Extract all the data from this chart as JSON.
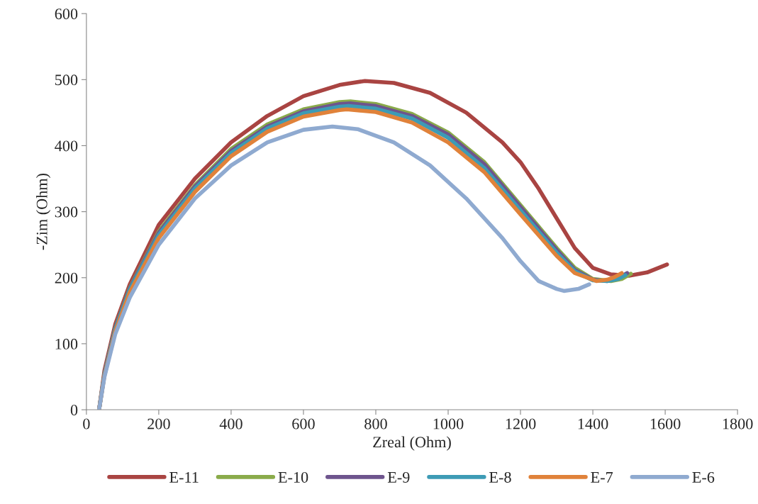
{
  "chart_data": {
    "type": "line",
    "xlabel": "Zreal (Ohm)",
    "ylabel": "-Zim (Ohm)",
    "xlim": [
      0,
      1800
    ],
    "xticks": [
      0,
      200,
      400,
      600,
      800,
      1000,
      1200,
      1400,
      1600,
      1800
    ],
    "ylim": [
      0,
      600
    ],
    "yticks": [
      0,
      100,
      200,
      300,
      400,
      500,
      600
    ],
    "grid": false,
    "legend": "bottom",
    "marker": "none",
    "line_style": "solid",
    "series": [
      {
        "name": "E-11",
        "color": "#a94442",
        "x": [
          35,
          50,
          80,
          120,
          200,
          300,
          400,
          500,
          600,
          700,
          770,
          850,
          950,
          1050,
          1150,
          1200,
          1250,
          1300,
          1350,
          1400,
          1450,
          1500,
          1550,
          1605
        ],
        "values": [
          0,
          60,
          130,
          190,
          280,
          350,
          405,
          445,
          475,
          492,
          498,
          495,
          480,
          450,
          405,
          375,
          335,
          290,
          245,
          215,
          205,
          203,
          208,
          220
        ]
      },
      {
        "name": "E-10",
        "color": "#8aab4a",
        "x": [
          35,
          50,
          80,
          120,
          200,
          300,
          400,
          500,
          600,
          700,
          730,
          800,
          900,
          1000,
          1100,
          1200,
          1300,
          1350,
          1400,
          1450,
          1480,
          1505
        ],
        "values": [
          0,
          55,
          125,
          185,
          270,
          340,
          395,
          432,
          455,
          466,
          467,
          463,
          448,
          420,
          375,
          310,
          245,
          215,
          198,
          195,
          198,
          206
        ]
      },
      {
        "name": "E-9",
        "color": "#6e548d",
        "x": [
          35,
          50,
          80,
          120,
          200,
          300,
          400,
          500,
          600,
          700,
          730,
          800,
          900,
          1000,
          1100,
          1200,
          1300,
          1350,
          1400,
          1440,
          1470,
          1495
        ],
        "values": [
          0,
          55,
          124,
          184,
          268,
          338,
          392,
          429,
          452,
          463,
          464,
          460,
          445,
          417,
          372,
          307,
          242,
          212,
          197,
          195,
          199,
          207
        ]
      },
      {
        "name": "E-8",
        "color": "#3d9bb5",
        "x": [
          35,
          50,
          80,
          120,
          200,
          300,
          400,
          500,
          600,
          700,
          725,
          800,
          900,
          1000,
          1100,
          1200,
          1300,
          1350,
          1400,
          1440,
          1470,
          1490
        ],
        "values": [
          0,
          54,
          122,
          182,
          265,
          335,
          389,
          426,
          449,
          459,
          460,
          456,
          441,
          412,
          366,
          302,
          238,
          210,
          196,
          195,
          198,
          204
        ]
      },
      {
        "name": "E-7",
        "color": "#e0823a",
        "x": [
          35,
          50,
          80,
          120,
          200,
          300,
          400,
          500,
          600,
          700,
          720,
          800,
          900,
          1000,
          1100,
          1200,
          1300,
          1350,
          1410,
          1440,
          1460,
          1480
        ],
        "values": [
          0,
          52,
          119,
          178,
          260,
          330,
          384,
          421,
          444,
          454,
          455,
          451,
          435,
          405,
          360,
          296,
          233,
          207,
          195,
          197,
          201,
          207
        ]
      },
      {
        "name": "E-6",
        "color": "#8faad0",
        "x": [
          35,
          50,
          80,
          120,
          200,
          300,
          400,
          500,
          600,
          680,
          750,
          850,
          950,
          1050,
          1150,
          1200,
          1250,
          1300,
          1320,
          1360,
          1390
        ],
        "values": [
          0,
          50,
          115,
          170,
          250,
          320,
          370,
          405,
          424,
          429,
          425,
          405,
          370,
          320,
          260,
          225,
          195,
          183,
          180,
          183,
          190
        ]
      }
    ]
  }
}
